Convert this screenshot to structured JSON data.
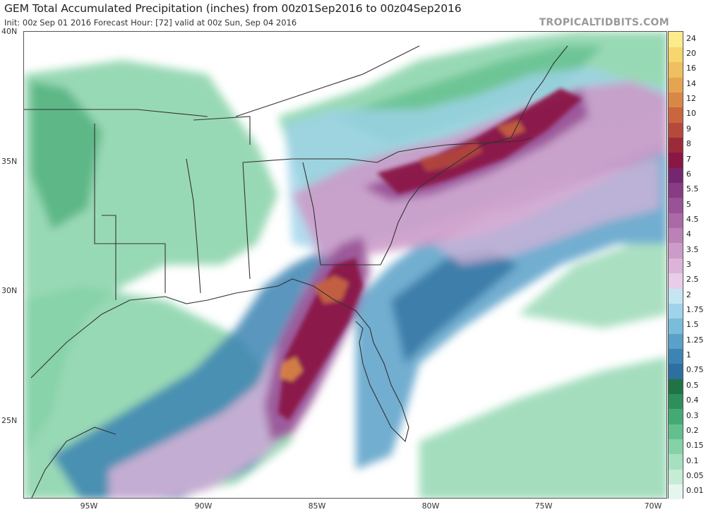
{
  "header": {
    "title": "GEM Total Accumulated Precipitation (inches) from 00z01Sep2016 to 00z04Sep2016",
    "subtitle": "Init: 00z Sep 01 2016   Forecast Hour: [72]   valid at 00z Sun, Sep 04 2016",
    "source": "TROPICALTIDBITS.COM"
  },
  "axes": {
    "lat_labels": [
      "40N",
      "35N",
      "30N",
      "25N"
    ],
    "lon_labels": [
      "95W",
      "90W",
      "85W",
      "80W",
      "75W",
      "70W"
    ]
  },
  "colorbar": {
    "units": "inches",
    "levels": [
      "0.01",
      "0.05",
      "0.1",
      "0.15",
      "0.2",
      "0.3",
      "0.4",
      "0.5",
      "0.75",
      "1",
      "1.25",
      "1.5",
      "1.75",
      "2",
      "2.5",
      "3",
      "3.5",
      "4",
      "4.5",
      "5",
      "5.5",
      "6",
      "7",
      "8",
      "9",
      "10",
      "12",
      "14",
      "16",
      "20",
      "24"
    ],
    "colors": [
      "#e6f6ee",
      "#c6ecd6",
      "#a6e0c0",
      "#86d2a8",
      "#63c08e",
      "#44aa73",
      "#2e8f5c",
      "#1f7345",
      "#2d6f9e",
      "#3c84b3",
      "#5aa0c8",
      "#7bbcda",
      "#9fd3ea",
      "#c4e6f3",
      "#e9cde8",
      "#dcb3d9",
      "#cc9bc9",
      "#bb82b8",
      "#aa6aa7",
      "#985296",
      "#873c83",
      "#752670",
      "#8a1646",
      "#9c2a3a",
      "#b5493c",
      "#c96640",
      "#d98746",
      "#e5a451",
      "#eec05f",
      "#f5d76d",
      "#fbeb8a"
    ]
  },
  "map_layers": {
    "land_color": "#ffffff",
    "border_color": "#333333",
    "county_color": "#b8b8b8"
  }
}
